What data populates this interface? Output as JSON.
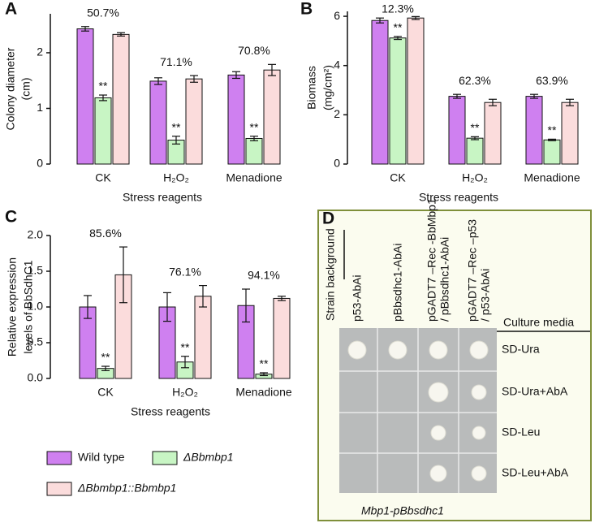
{
  "chart_data": [
    {
      "type": "bar",
      "panel": "A",
      "x_label": "Stress reagents",
      "y_label": [
        "Colony diameter",
        "(cm)"
      ],
      "categories": [
        "CK",
        "H₂O₂",
        "Menadione"
      ],
      "annotations": [
        "50.7%",
        "71.1%",
        "70.8%"
      ],
      "ylim": [
        0,
        2.7
      ],
      "yticks": [
        0,
        1,
        2
      ],
      "series": [
        {
          "name": "Wild type",
          "color": "#cf80f0",
          "values": [
            2.43,
            1.49,
            1.6
          ],
          "errors": [
            0.04,
            0.06,
            0.06
          ]
        },
        {
          "name": "ΔBbmbp1",
          "color": "#c8f5c4",
          "values": [
            1.19,
            0.43,
            0.46
          ],
          "errors": [
            0.05,
            0.07,
            0.04
          ],
          "significance": [
            "**",
            "**",
            "**"
          ]
        },
        {
          "name": "ΔBbmbp1::Bbmbp1",
          "color": "#fbdcdc",
          "values": [
            2.33,
            1.53,
            1.69
          ],
          "errors": [
            0.03,
            0.06,
            0.1
          ]
        }
      ]
    },
    {
      "type": "bar",
      "panel": "B",
      "x_label": "Stress reagents",
      "y_label": [
        "Biomass",
        "(mg/cm²)"
      ],
      "categories": [
        "CK",
        "H₂O₂",
        "Menadione"
      ],
      "annotations": [
        "12.3%",
        "62.3%",
        "63.9%"
      ],
      "ylim": [
        0,
        6.2
      ],
      "yticks": [
        0,
        2,
        4,
        6
      ],
      "series": [
        {
          "name": "Wild type",
          "color": "#cf80f0",
          "values": [
            5.83,
            2.75,
            2.75
          ],
          "errors": [
            0.1,
            0.08,
            0.08
          ]
        },
        {
          "name": "ΔBbmbp1",
          "color": "#c8f5c4",
          "values": [
            5.12,
            1.05,
            0.98
          ],
          "errors": [
            0.06,
            0.06,
            0.03
          ],
          "significance": [
            "**",
            "**",
            "**"
          ]
        },
        {
          "name": "ΔBbmbp1::Bbmbp1",
          "color": "#fbdcdc",
          "values": [
            5.93,
            2.5,
            2.5
          ],
          "errors": [
            0.06,
            0.13,
            0.13
          ]
        }
      ]
    },
    {
      "type": "bar",
      "panel": "C",
      "x_label": "Stress reagents",
      "y_label": [
        "Relative expression",
        "levels of BbSdhC1"
      ],
      "categories": [
        "CK",
        "H₂O₂",
        "Menadione"
      ],
      "annotations": [
        "85.6%",
        "76.1%",
        "94.1%"
      ],
      "ylim": [
        0,
        2
      ],
      "yticks": [
        {
          "value": 0,
          "label": "0.0"
        },
        {
          "value": 0.5,
          "label": "0.5"
        },
        {
          "value": 1,
          "label": "1.0"
        },
        {
          "value": 1.5,
          "label": "1.5"
        },
        {
          "value": 2,
          "label": "2.0"
        }
      ],
      "series": [
        {
          "name": "Wild type",
          "color": "#cf80f0",
          "values": [
            1.0,
            1.0,
            1.02
          ],
          "errors": [
            0.16,
            0.2,
            0.23
          ]
        },
        {
          "name": "ΔBbmbp1",
          "color": "#c8f5c4",
          "values": [
            0.14,
            0.23,
            0.06
          ],
          "errors": [
            0.03,
            0.08,
            0.02
          ],
          "significance": [
            "**",
            "**",
            "**"
          ]
        },
        {
          "name": "ΔBbmbp1::Bbmbp1",
          "color": "#fbdcdc",
          "values": [
            1.45,
            1.15,
            1.12
          ],
          "errors": [
            0.39,
            0.15,
            0.03
          ]
        }
      ]
    }
  ],
  "panel_d": {
    "panel": "D",
    "row_header": "Strain background",
    "column_header": "Culture media",
    "columns": [
      [
        "p53-AbAi"
      ],
      [
        "pBbsdhc1-AbAi"
      ],
      [
        "pGADT7 –Rec -BbMbp1",
        "/ pBbsdhc1-AbAi"
      ],
      [
        "pGADT7 –Rec –p53",
        "/ p53-AbAi"
      ]
    ],
    "rows": [
      "SD-Ura",
      "SD-Ura+AbA",
      "SD-Leu",
      "SD-Leu+AbA"
    ],
    "caption": "Mbp1-pBbsdhc1"
  }
}
